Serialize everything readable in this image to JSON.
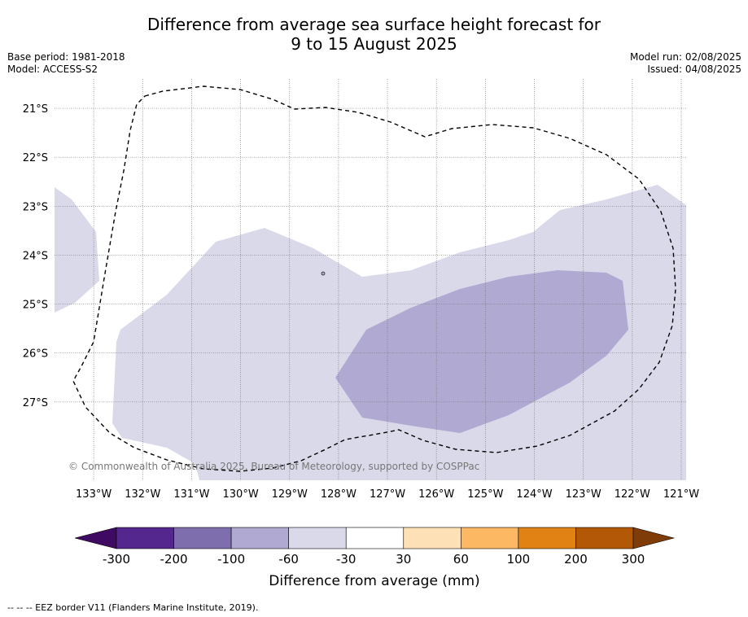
{
  "title": {
    "line1": "Difference from average sea surface height forecast for",
    "line2": "9 to 15 August 2025"
  },
  "meta": {
    "base_period": "Base period: 1981-2018",
    "model": "Model: ACCESS-S2",
    "model_run": "Model run: 02/08/2025",
    "issued": "Issued: 04/08/2025"
  },
  "map": {
    "lon_range": [
      -133.8,
      -120.9
    ],
    "lat_range": [
      -28.6,
      -20.4
    ],
    "lat_labels": [
      "21°S",
      "22°S",
      "23°S",
      "24°S",
      "25°S",
      "26°S",
      "27°S"
    ],
    "lon_labels": [
      "133°W",
      "132°W",
      "131°W",
      "130°W",
      "129°W",
      "128°W",
      "127°W",
      "126°W",
      "125°W",
      "124°W",
      "123°W",
      "122°W",
      "121°W"
    ],
    "gridlines": true,
    "copyright": "© Commonwealth of Australia 2025, Bureau of Meteorology, supported by COSPPac",
    "colors": {
      "band_-60_-30": "#d9d9ea",
      "band_-100_-60": "#b0a9d2"
    }
  },
  "colorbar": {
    "tick_labels": [
      "-300",
      "-200",
      "-100",
      "-60",
      "-30",
      "30",
      "60",
      "100",
      "200",
      "300"
    ],
    "colors": [
      "#3f0a62",
      "#54278f",
      "#7f6ead",
      "#b0a9d2",
      "#d9d9ea",
      "#ffffff",
      "#fee0b6",
      "#fdb863",
      "#e08214",
      "#b35806",
      "#7f3b08"
    ],
    "label": "Difference from average (mm)"
  },
  "footer": "--  --  -- EEZ border V11 (Flanders Marine Institute, 2019)."
}
